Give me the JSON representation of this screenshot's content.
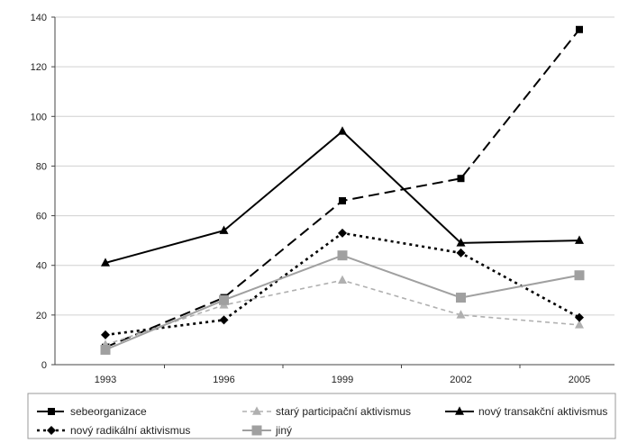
{
  "chart_data": {
    "type": "line",
    "title": "",
    "xlabel": "",
    "ylabel": "",
    "categories": [
      "1993",
      "1996",
      "1999",
      "2002",
      "2005"
    ],
    "ylim": [
      0,
      140
    ],
    "yticks": [
      0,
      20,
      40,
      60,
      80,
      100,
      120,
      140
    ],
    "grid": true,
    "legend_position": "bottom",
    "series": [
      {
        "name": "sebeorganizace",
        "values": [
          7,
          27,
          66,
          75,
          135
        ],
        "color": "#000000",
        "dash": "dashed",
        "marker": "square"
      },
      {
        "name": "starý participační aktivismus",
        "values": [
          8,
          24,
          34,
          20,
          16
        ],
        "color": "#b0b0b0",
        "dash": "dashed-short",
        "marker": "triangle"
      },
      {
        "name": "nový transakční aktivismus",
        "values": [
          41,
          54,
          94,
          49,
          50
        ],
        "color": "#000000",
        "dash": "solid",
        "marker": "triangle"
      },
      {
        "name": "nový radikální aktivismus",
        "values": [
          12,
          18,
          53,
          45,
          19
        ],
        "color": "#000000",
        "dash": "dotted",
        "marker": "diamond"
      },
      {
        "name": "jiný",
        "values": [
          6,
          26,
          44,
          27,
          36
        ],
        "color": "#a0a0a0",
        "dash": "solid",
        "marker": "square"
      }
    ]
  }
}
